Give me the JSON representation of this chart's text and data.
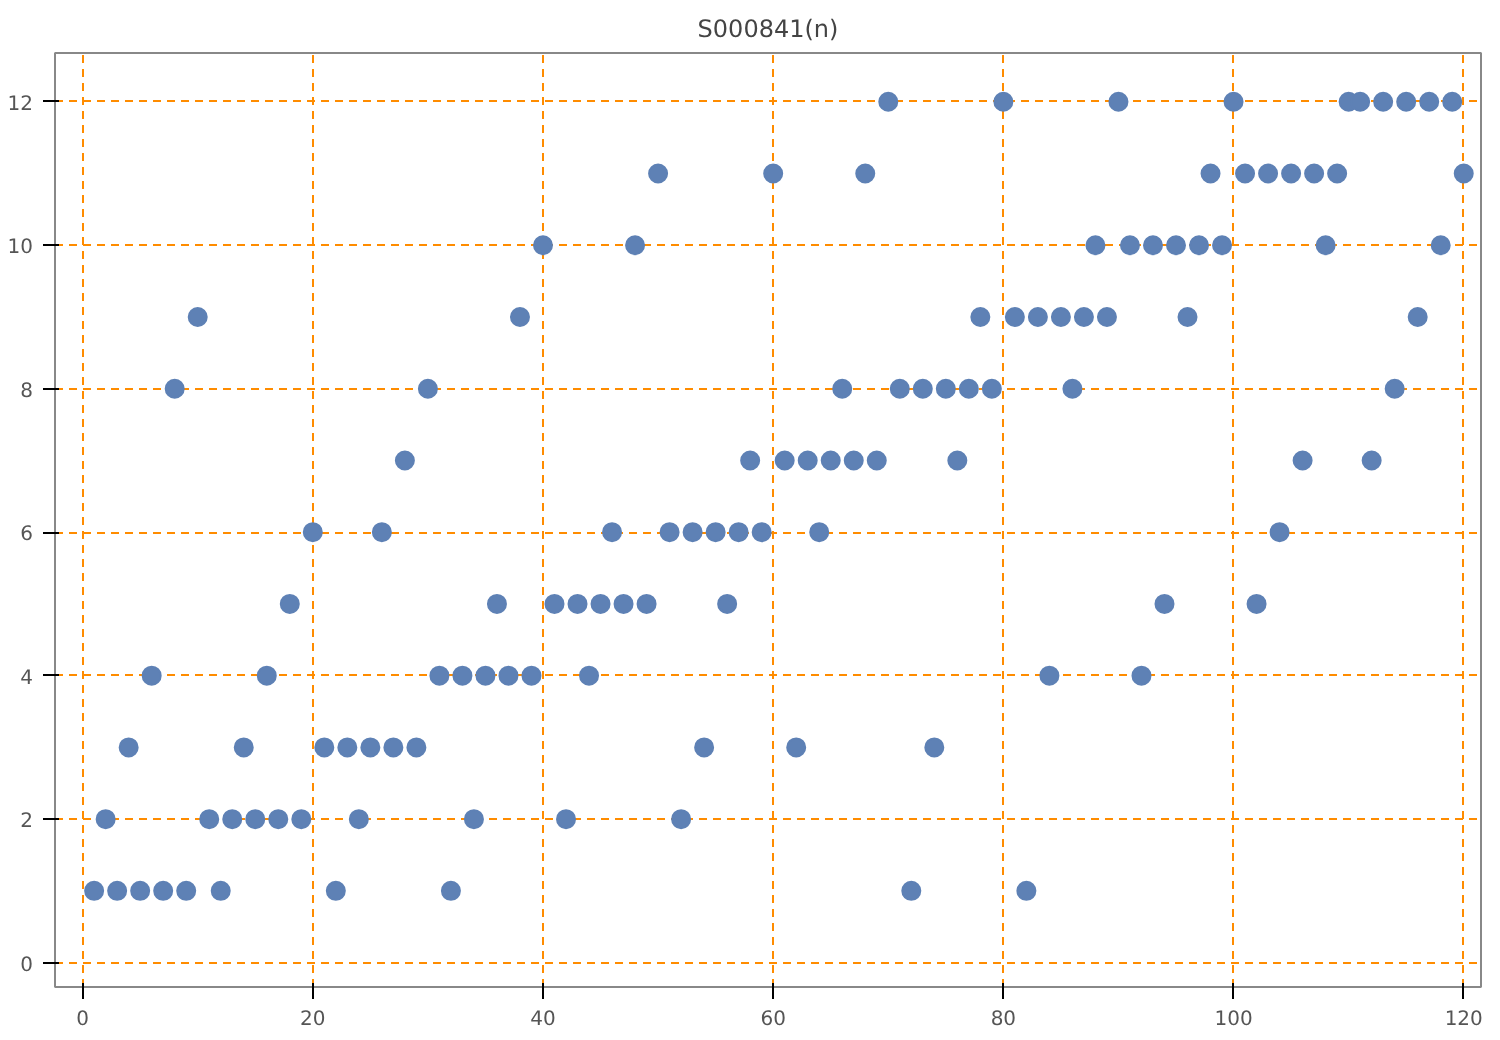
{
  "chart_data": {
    "type": "scatter",
    "title": "S000841(n)",
    "x": [
      1,
      2,
      3,
      4,
      5,
      6,
      7,
      8,
      9,
      10,
      11,
      12,
      13,
      14,
      15,
      16,
      17,
      18,
      19,
      20,
      21,
      22,
      23,
      24,
      25,
      26,
      27,
      28,
      29,
      30,
      31,
      32,
      33,
      34,
      35,
      36,
      37,
      38,
      39,
      40,
      41,
      42,
      43,
      44,
      45,
      46,
      47,
      48,
      49,
      50,
      51,
      52,
      53,
      54,
      55,
      56,
      57,
      58,
      59,
      60,
      61,
      62,
      63,
      64,
      65,
      66,
      67,
      68,
      69,
      70,
      71,
      72,
      73,
      74,
      75,
      76,
      77,
      78,
      79,
      80,
      81,
      82,
      83,
      84,
      85,
      86,
      87,
      88,
      89,
      90,
      91,
      92,
      93,
      94,
      95,
      96,
      97,
      98,
      99,
      100,
      101,
      102,
      103,
      104,
      105,
      106,
      107,
      108,
      109,
      110,
      111,
      112,
      113,
      114,
      115,
      116,
      117,
      118,
      119,
      120
    ],
    "series": [
      {
        "color": "#5e81b5",
        "values": [
          1,
          2,
          1,
          3,
          1,
          4,
          1,
          8,
          1,
          9,
          2,
          1,
          2,
          3,
          2,
          4,
          2,
          5,
          2,
          6,
          3,
          1,
          3,
          2,
          3,
          6,
          3,
          7,
          3,
          8,
          4,
          1,
          4,
          2,
          4,
          5,
          4,
          9,
          4,
          10,
          5,
          2,
          5,
          4,
          5,
          6,
          5,
          10,
          5,
          11,
          6,
          2,
          6,
          3,
          6,
          5,
          6,
          7,
          6,
          11,
          7,
          3,
          7,
          6,
          7,
          8,
          7,
          11,
          7,
          12,
          8,
          1,
          8,
          3,
          8,
          7,
          8,
          9,
          8,
          12,
          9,
          1,
          9,
          4,
          9,
          8,
          9,
          10,
          9,
          12,
          10,
          4,
          10,
          5,
          10,
          9,
          10,
          11,
          10,
          12,
          11,
          5,
          11,
          6,
          11,
          7,
          11,
          10,
          11,
          12,
          12,
          7,
          12,
          8,
          12,
          9,
          12,
          10,
          12,
          11
        ]
      }
    ],
    "xlim": [
      -2.4,
      121.5
    ],
    "ylim": [
      -0.34,
      12.68
    ],
    "xticks": [
      0,
      20,
      40,
      60,
      80,
      100,
      120
    ],
    "yticks": [
      0,
      2,
      4,
      6,
      8,
      10,
      12
    ],
    "grid": true,
    "marker": "circle"
  }
}
